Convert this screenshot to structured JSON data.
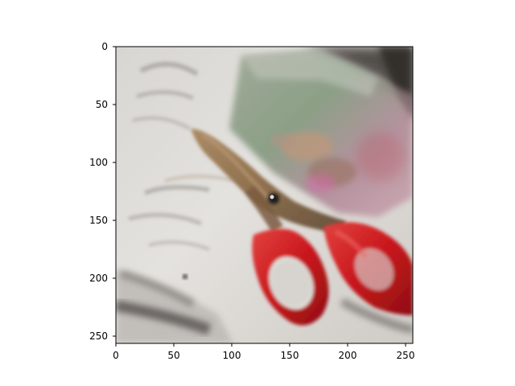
{
  "figure": {
    "description_type": "matplotlib imshow of a 256x256 image",
    "image_subject_icon": "scissors-photo",
    "axes": {
      "x_ticks": [
        "0",
        "50",
        "100",
        "150",
        "200",
        "250"
      ],
      "y_ticks": [
        "0",
        "50",
        "100",
        "150",
        "200",
        "250"
      ],
      "x_range": [
        0,
        256
      ],
      "y_range": [
        0,
        256
      ]
    },
    "colors": {
      "handle_red": "#c8161c",
      "blade_bronze": "#8a6a46",
      "paper_white": "#e2dfdb",
      "bag_green": "#6f8a6a"
    }
  }
}
